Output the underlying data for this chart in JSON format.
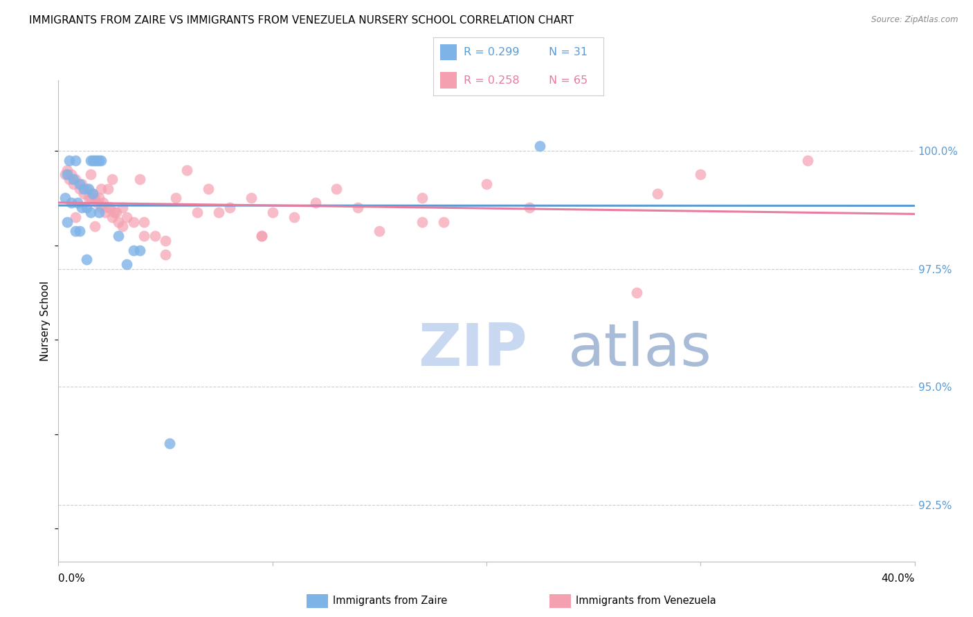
{
  "title": "IMMIGRANTS FROM ZAIRE VS IMMIGRANTS FROM VENEZUELA NURSERY SCHOOL CORRELATION CHART",
  "source": "Source: ZipAtlas.com",
  "ylabel": "Nursery School",
  "yticks": [
    92.5,
    95.0,
    97.5,
    100.0
  ],
  "ytick_labels": [
    "92.5%",
    "95.0%",
    "97.5%",
    "100.0%"
  ],
  "xmin": 0.0,
  "xmax": 40.0,
  "ymin": 91.3,
  "ymax": 101.5,
  "color_zaire": "#7EB3E8",
  "color_venezuela": "#F4A0B0",
  "color_zaire_line": "#5B9BD5",
  "color_venezuela_line": "#E87CA0",
  "watermark_zip_color": "#C8D8F0",
  "watermark_atlas_color": "#A0B8D8",
  "zaire_x": [
    0.5,
    0.8,
    1.5,
    1.6,
    1.7,
    1.8,
    1.9,
    2.0,
    0.4,
    0.7,
    1.0,
    1.2,
    1.4,
    1.6,
    0.3,
    0.6,
    0.9,
    1.1,
    1.3,
    1.5,
    1.9,
    0.4,
    0.8,
    1.0,
    2.8,
    3.5,
    3.8,
    1.3,
    3.2,
    22.5,
    5.2
  ],
  "zaire_y": [
    99.8,
    99.8,
    99.8,
    99.8,
    99.8,
    99.8,
    99.8,
    99.8,
    99.5,
    99.4,
    99.3,
    99.2,
    99.2,
    99.1,
    99.0,
    98.9,
    98.9,
    98.8,
    98.8,
    98.7,
    98.7,
    98.5,
    98.3,
    98.3,
    98.2,
    97.9,
    97.9,
    97.7,
    97.6,
    100.1,
    93.8
  ],
  "venezuela_x": [
    0.3,
    0.4,
    0.5,
    0.6,
    0.7,
    0.8,
    1.0,
    1.1,
    1.2,
    1.3,
    1.4,
    1.5,
    1.6,
    1.7,
    1.8,
    1.9,
    2.0,
    2.1,
    2.2,
    2.3,
    2.4,
    2.5,
    2.6,
    2.7,
    2.8,
    3.0,
    3.2,
    3.5,
    4.0,
    4.5,
    5.0,
    5.5,
    6.0,
    7.0,
    7.5,
    8.0,
    9.0,
    9.5,
    10.0,
    11.0,
    12.0,
    13.0,
    14.0,
    15.0,
    17.0,
    17.0,
    20.0,
    22.0,
    27.0,
    30.0,
    35.0,
    0.8,
    1.5,
    1.7,
    2.0,
    2.3,
    2.5,
    3.0,
    3.8,
    4.0,
    5.0,
    6.5,
    9.5,
    18.0,
    28.0
  ],
  "venezuela_y": [
    99.5,
    99.6,
    99.4,
    99.5,
    99.3,
    99.4,
    99.2,
    99.3,
    99.1,
    99.2,
    99.0,
    99.0,
    99.1,
    99.0,
    98.9,
    99.0,
    98.8,
    98.9,
    98.7,
    98.8,
    98.8,
    98.6,
    98.7,
    98.7,
    98.5,
    98.4,
    98.6,
    98.5,
    98.5,
    98.2,
    98.1,
    99.0,
    99.6,
    99.2,
    98.7,
    98.8,
    99.0,
    98.2,
    98.7,
    98.6,
    98.9,
    99.2,
    98.8,
    98.3,
    99.0,
    98.5,
    99.3,
    98.8,
    97.0,
    99.5,
    99.8,
    98.6,
    99.5,
    98.4,
    99.2,
    99.2,
    99.4,
    98.8,
    99.4,
    98.2,
    97.8,
    98.7,
    98.2,
    98.5,
    99.1
  ]
}
